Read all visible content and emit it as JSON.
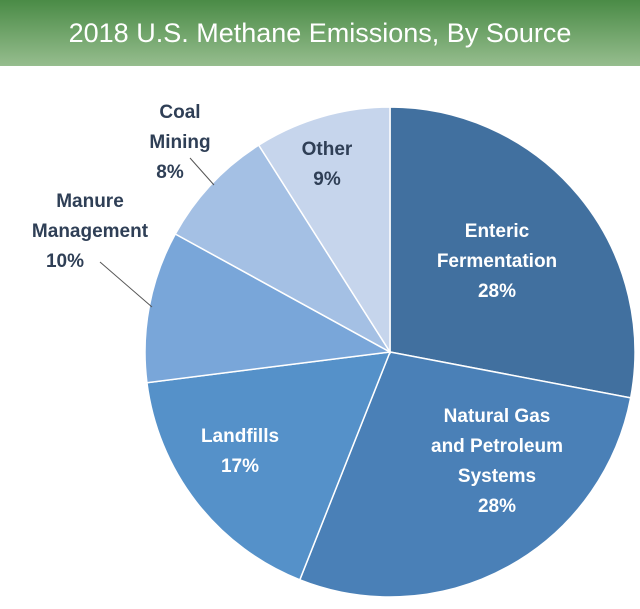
{
  "chart_data": {
    "type": "pie",
    "title": "2018 U.S. Methane Emissions, By Source",
    "slices": [
      {
        "label": [
          "Enteric",
          "Fermentation"
        ],
        "value": 28,
        "pct": "28%",
        "color": "#41709f",
        "text_color": "#ffffff"
      },
      {
        "label": [
          "Natural Gas",
          "and Petroleum",
          "Systems"
        ],
        "value": 28,
        "pct": "28%",
        "color": "#4a80b7",
        "text_color": "#ffffff"
      },
      {
        "label": [
          "Landfills"
        ],
        "value": 17,
        "pct": "17%",
        "color": "#5591c9",
        "text_color": "#ffffff"
      },
      {
        "label": [
          "Manure",
          "Management"
        ],
        "value": 10,
        "pct": "10%",
        "color": "#79a6d9",
        "text_color": "#2f3f56"
      },
      {
        "label": [
          "Coal",
          "Mining"
        ],
        "value": 8,
        "pct": "8%",
        "color": "#a4c0e4",
        "text_color": "#2f3f56"
      },
      {
        "label": [
          "Other"
        ],
        "value": 9,
        "pct": "9%",
        "color": "#c6d5ec",
        "text_color": "#2f3f56"
      }
    ]
  }
}
